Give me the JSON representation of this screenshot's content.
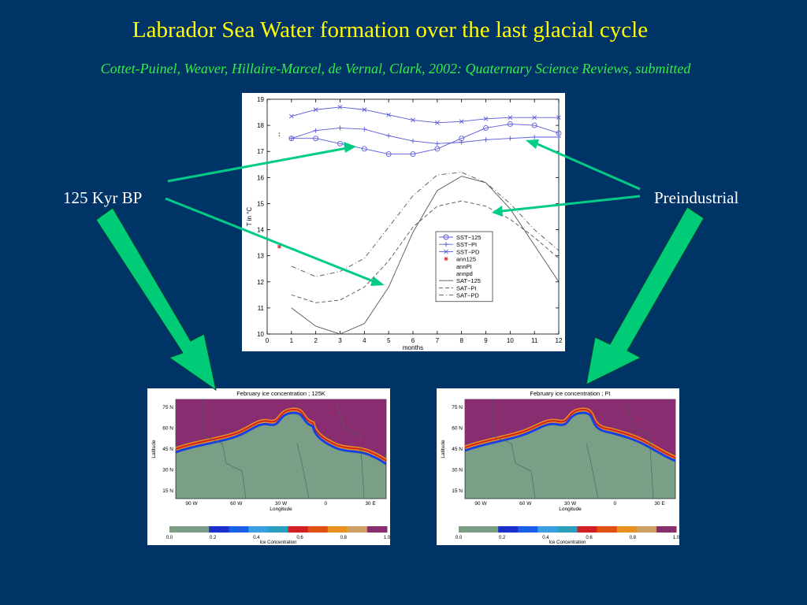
{
  "slide": {
    "title": "Labrador Sea Water formation over the last glacial cycle",
    "subtitle": "Cottet-Puinel, Weaver, Hillaire-Marcel, de Vernal, Clark, 2002: Quaternary Science Reviews, submitted",
    "left_label": "125 Kyr BP",
    "right_label": "Preindustrial",
    "colors": {
      "background": "#003366",
      "title": "#ffff00",
      "subtitle": "#33ee44",
      "arrow": "#00cc88",
      "label": "#ffffff"
    }
  },
  "chart_data": [
    {
      "type": "line",
      "xlabel": "months",
      "ylabel": "T in °C",
      "xlim": [
        0,
        12
      ],
      "ylim": [
        10,
        19
      ],
      "xticks": [
        "0",
        "1",
        "2",
        "3",
        "4",
        "5",
        "6",
        "7",
        "8",
        "9",
        "10",
        "11",
        "12"
      ],
      "yticks": [
        "10",
        "11",
        "12",
        "13",
        "14",
        "15",
        "16",
        "17",
        "18",
        "19"
      ],
      "legend_position": "lower-right",
      "x": [
        1,
        2,
        3,
        4,
        5,
        6,
        7,
        8,
        9,
        10,
        11,
        12
      ],
      "series": [
        {
          "name": "SST−125",
          "style": "solid",
          "marker": "circle",
          "color": "#5a5adc",
          "values": [
            17.5,
            17.5,
            17.3,
            17.1,
            16.9,
            16.9,
            17.1,
            17.5,
            17.9,
            18.05,
            18.0,
            17.7
          ]
        },
        {
          "name": "SST−PI",
          "style": "solid",
          "marker": "plus",
          "color": "#5a5adc",
          "values": [
            17.5,
            17.8,
            17.9,
            17.85,
            17.6,
            17.4,
            17.3,
            17.35,
            17.45,
            17.5,
            17.55,
            17.55
          ]
        },
        {
          "name": "SST−PD",
          "style": "solid",
          "marker": "x",
          "color": "#5a5adc",
          "values": [
            18.35,
            18.6,
            18.7,
            18.6,
            18.4,
            18.2,
            18.1,
            18.15,
            18.25,
            18.3,
            18.3,
            18.3
          ]
        },
        {
          "name": "ann125",
          "style": "point",
          "marker": "asterisk",
          "color": "#e03030",
          "x": [
            0.5
          ],
          "values": [
            13.35
          ]
        },
        {
          "name": "annPI",
          "style": "point",
          "marker": "none",
          "color": "#555555",
          "x": [
            0.5
          ],
          "values": [
            17.7
          ]
        },
        {
          "name": "annpd",
          "style": "point",
          "marker": "none",
          "color": "#555555",
          "x": [
            0.5
          ],
          "values": [
            17.6
          ]
        },
        {
          "name": "SAT−125",
          "style": "solid",
          "marker": "none",
          "color": "#555555",
          "values": [
            11.0,
            10.3,
            10.0,
            10.4,
            11.8,
            13.9,
            15.5,
            16.05,
            15.8,
            14.8,
            13.4,
            12.0
          ]
        },
        {
          "name": "SAT−PI",
          "style": "dashed",
          "marker": "none",
          "color": "#555555",
          "values": [
            11.5,
            11.2,
            11.3,
            11.8,
            12.8,
            14.1,
            14.9,
            15.1,
            14.9,
            14.4,
            13.7,
            12.9
          ]
        },
        {
          "name": "SAT−PD",
          "style": "dashdot",
          "marker": "none",
          "color": "#555555",
          "values": [
            12.6,
            12.2,
            12.4,
            12.9,
            14.1,
            15.3,
            16.1,
            16.2,
            15.8,
            15.0,
            14.0,
            13.2
          ]
        }
      ]
    },
    {
      "type": "heatmap",
      "title": "February ice concentration ; 125K",
      "xlabel": "Longitude",
      "ylabel": "Latitude",
      "xticks": [
        "90 W",
        "60 W",
        "30 W",
        "0",
        "30 E"
      ],
      "yticks": [
        "75 N",
        "60 N",
        "45 N",
        "30 N",
        "15 N"
      ],
      "colorbar_label": "Ice Concentration",
      "colorbar_ticks": [
        "0.0",
        "0.2",
        "0.4",
        "0.6",
        "0.8",
        "1.0"
      ],
      "colorbar_colors": [
        "#7a9e86",
        "#7a9e86",
        "#1a30c8",
        "#1a60e6",
        "#3aa0e6",
        "#2aa0c0",
        "#d02020",
        "#e05010",
        "#e89020",
        "#d0a060",
        "#8a2c70"
      ]
    },
    {
      "type": "heatmap",
      "title": "February ice concentration ; PI",
      "xlabel": "Longitude",
      "ylabel": "Latitude",
      "xticks": [
        "90 W",
        "60 W",
        "30 W",
        "0",
        "30 E"
      ],
      "yticks": [
        "75 N",
        "60 N",
        "45 N",
        "30 N",
        "15 N"
      ],
      "colorbar_label": "Ice Concentration",
      "colorbar_ticks": [
        "0.0",
        "0.2",
        "0.4",
        "0.6",
        "0.8",
        "1.0"
      ],
      "colorbar_colors": [
        "#7a9e86",
        "#7a9e86",
        "#1a30c8",
        "#1a60e6",
        "#3aa0e6",
        "#2aa0c0",
        "#d02020",
        "#e05010",
        "#e89020",
        "#d0a060",
        "#8a2c70"
      ]
    }
  ]
}
